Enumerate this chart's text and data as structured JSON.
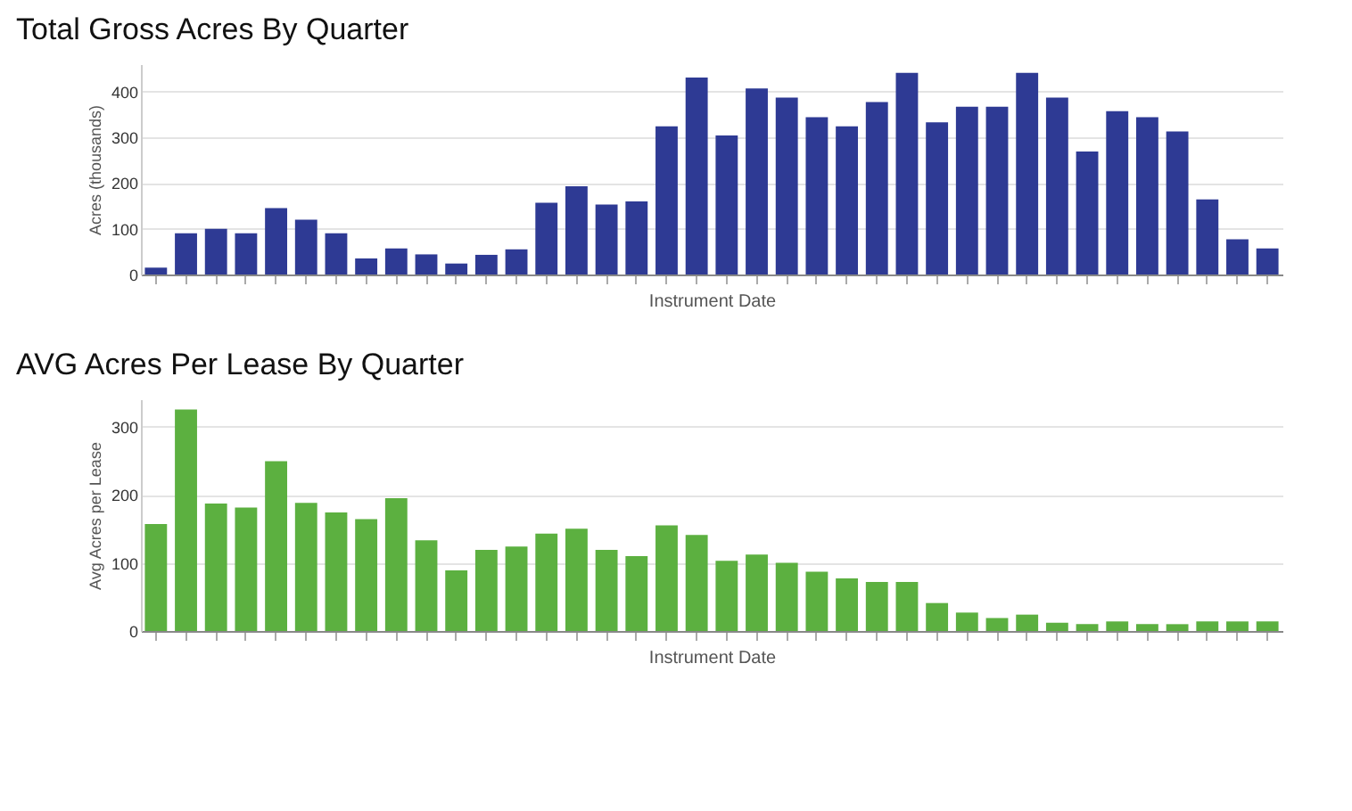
{
  "chart_data": [
    {
      "type": "bar",
      "title": "Total Gross Acres By Quarter",
      "xlabel": "Instrument Date",
      "ylabel": "Acres (thousands)",
      "categories": [
        null,
        null,
        null,
        null,
        null,
        null,
        null,
        null,
        null,
        null,
        null,
        null,
        null,
        null,
        null,
        null,
        null,
        null,
        null,
        null,
        null,
        null,
        null,
        null,
        null,
        null,
        null,
        null,
        null,
        null,
        null,
        null,
        null,
        null,
        null,
        null,
        null,
        null
      ],
      "series": [
        {
          "color": "#2e3a94",
          "values": [
            15,
            90,
            100,
            90,
            145,
            120,
            90,
            35,
            57,
            44,
            24,
            43,
            55,
            157,
            193,
            153,
            160,
            324,
            431,
            304,
            407,
            387,
            344,
            324,
            377,
            441,
            333,
            367,
            367,
            441,
            387,
            269,
            357,
            344,
            313,
            164,
            77,
            57
          ]
        }
      ],
      "ylim": [
        0,
        460
      ],
      "yticks": [
        0,
        100,
        200,
        300,
        400
      ],
      "grid": "y"
    },
    {
      "type": "bar",
      "title": "AVG Acres Per Lease By Quarter",
      "xlabel": "Instrument Date",
      "ylabel": "Avg Acres per Lease",
      "categories": [
        null,
        null,
        null,
        null,
        null,
        null,
        null,
        null,
        null,
        null,
        null,
        null,
        null,
        null,
        null,
        null,
        null,
        null,
        null,
        null,
        null,
        null,
        null,
        null,
        null,
        null,
        null,
        null,
        null,
        null,
        null,
        null,
        null,
        null,
        null,
        null,
        null,
        null
      ],
      "series": [
        {
          "color": "#5cb040",
          "values": [
            157,
            325,
            187,
            181,
            249,
            188,
            174,
            164,
            195,
            133,
            89,
            119,
            124,
            143,
            150,
            119,
            110,
            155,
            141,
            103,
            112,
            100,
            87,
            77,
            72,
            72,
            41,
            27,
            19,
            24,
            12,
            10,
            14,
            10,
            10,
            14,
            14,
            14
          ]
        }
      ],
      "ylim": [
        0,
        340
      ],
      "yticks": [
        0,
        100,
        200,
        300
      ],
      "grid": "y"
    }
  ]
}
